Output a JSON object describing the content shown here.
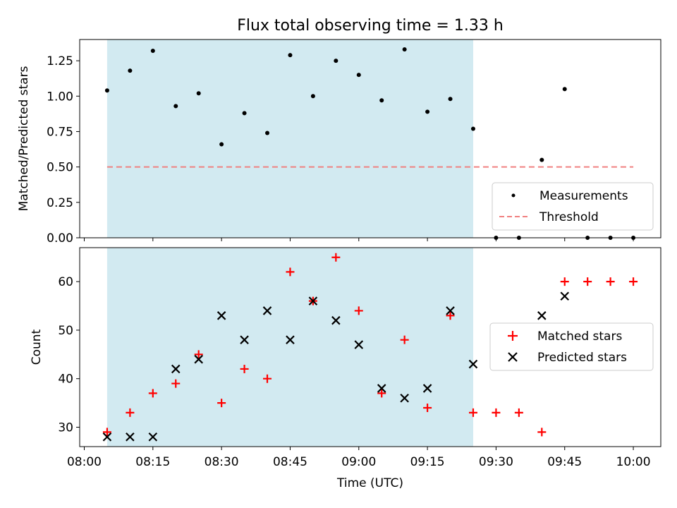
{
  "chart_data": {
    "title": "Flux total observing time = 1.33 h",
    "shaded_region": {
      "from": 5,
      "to": 85,
      "color": "#add8e6"
    },
    "xaxis": {
      "label": "Time (UTC)",
      "range": [
        -1,
        126
      ],
      "tick_values": [
        0,
        15,
        30,
        45,
        60,
        75,
        90,
        105,
        120
      ],
      "tick_labels": [
        "08:00",
        "08:15",
        "08:30",
        "08:45",
        "09:00",
        "09:15",
        "09:30",
        "09:45",
        "10:00"
      ]
    },
    "x": [
      5,
      10,
      15,
      20,
      25,
      30,
      35,
      40,
      45,
      50,
      55,
      60,
      65,
      70,
      75,
      80,
      85,
      90,
      95,
      100,
      105,
      110,
      115,
      120
    ],
    "panels": [
      {
        "type": "scatter",
        "ylabel": "Matched/Predicted stars",
        "ylim": [
          0,
          1.4
        ],
        "yticks": [
          0.0,
          0.25,
          0.5,
          0.75,
          1.0,
          1.25
        ],
        "ytick_labels": [
          "0.00",
          "0.25",
          "0.50",
          "0.75",
          "1.00",
          "1.25"
        ],
        "series": [
          {
            "name": "Measurements",
            "marker": "dot",
            "color": "#000000",
            "values": [
              1.04,
              1.18,
              1.32,
              0.93,
              1.02,
              0.66,
              0.88,
              0.74,
              1.29,
              1.0,
              1.25,
              1.15,
              0.97,
              1.33,
              0.89,
              0.98,
              0.77,
              0.0,
              0.0,
              0.55,
              1.05,
              0.0,
              0.0,
              0.0
            ]
          }
        ],
        "threshold": {
          "name": "Threshold",
          "value": 0.5,
          "from": 5,
          "to": 120,
          "color": "#f08080"
        },
        "legend": "lower-right"
      },
      {
        "type": "scatter",
        "ylabel": "Count",
        "ylim": [
          26,
          67
        ],
        "yticks": [
          30,
          40,
          50,
          60
        ],
        "ytick_labels": [
          "30",
          "40",
          "50",
          "60"
        ],
        "series": [
          {
            "name": "Matched stars",
            "marker": "plus",
            "color": "#ff0000",
            "values": [
              29,
              33,
              37,
              39,
              45,
              35,
              42,
              40,
              62,
              56,
              65,
              54,
              37,
              48,
              34,
              53,
              33,
              33,
              33,
              29,
              60,
              60,
              60,
              60
            ]
          },
          {
            "name": "Predicted stars",
            "marker": "x",
            "color": "#000000",
            "values": [
              28,
              28,
              28,
              42,
              44,
              53,
              48,
              54,
              48,
              56,
              52,
              47,
              38,
              36,
              38,
              54,
              43,
              null,
              null,
              53,
              57,
              null,
              null,
              null
            ]
          }
        ],
        "legend": "center-right"
      }
    ]
  }
}
